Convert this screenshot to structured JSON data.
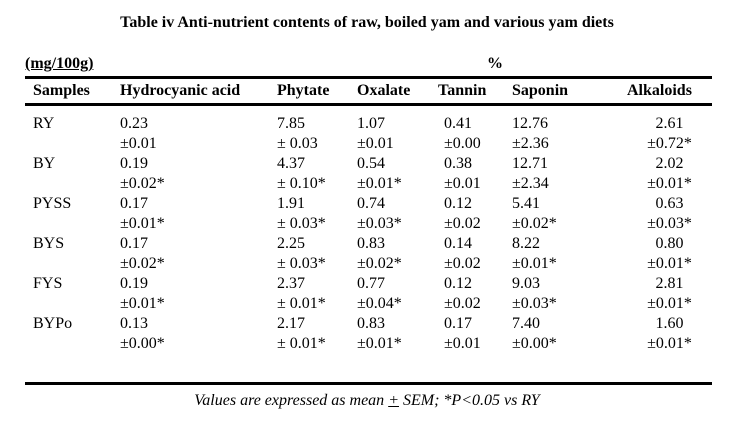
{
  "title": "Table iv Anti-nutrient contents of raw, boiled yam and various yam diets",
  "units": {
    "left": "(mg/100g)",
    "center": "%"
  },
  "table": {
    "headers": [
      "Samples",
      "Hydrocyanic acid",
      "Phytate",
      "Oxalate",
      "Tannin",
      "Saponin",
      "Alkaloids"
    ],
    "rows": [
      {
        "sample": "RY",
        "values": [
          "0.23",
          "7.85",
          "1.07",
          "0.41",
          "12.76",
          "2.61"
        ],
        "sems": [
          "±0.01",
          "± 0.03",
          "±0.01",
          "±0.00",
          "±2.36",
          "±0.72*"
        ]
      },
      {
        "sample": "BY",
        "values": [
          "0.19",
          "4.37",
          "0.54",
          "0.38",
          "12.71",
          "2.02"
        ],
        "sems": [
          "±0.02*",
          "± 0.10*",
          "±0.01*",
          "±0.01",
          "±2.34",
          "±0.01*"
        ]
      },
      {
        "sample": "PYSS",
        "values": [
          "0.17",
          "1.91",
          "0.74",
          "0.12",
          "5.41",
          "0.63"
        ],
        "sems": [
          "±0.01*",
          "± 0.03*",
          "±0.03*",
          "±0.02",
          "±0.02*",
          "±0.03*"
        ]
      },
      {
        "sample": "BYS",
        "values": [
          "0.17",
          "2.25",
          "0.83",
          "0.14",
          "8.22",
          "0.80"
        ],
        "sems": [
          "±0.02*",
          "± 0.03*",
          "±0.02*",
          "±0.02",
          "±0.01*",
          "±0.01*"
        ]
      },
      {
        "sample": "FYS",
        "values": [
          "0.19",
          "2.37",
          "0.77",
          "0.12",
          "9.03",
          "2.81"
        ],
        "sems": [
          "±0.01*",
          "± 0.01*",
          "±0.04*",
          "±0.02",
          "±0.03*",
          "±0.01*"
        ]
      },
      {
        "sample": "BYPo",
        "values": [
          "0.13",
          "2.17",
          "0.83",
          "0.17",
          "7.40",
          "1.60"
        ],
        "sems": [
          "±0.00*",
          "± 0.01*",
          "±0.01*",
          "±0.01",
          "±0.00*",
          "±0.01*"
        ]
      }
    ]
  },
  "footer": {
    "prefix": "Values are expressed as mean ",
    "pm": "+",
    "suffix": " SEM; *P<0.05 vs RY"
  },
  "colors": {
    "text": "#000000",
    "background": "#ffffff",
    "rule": "#000000"
  }
}
